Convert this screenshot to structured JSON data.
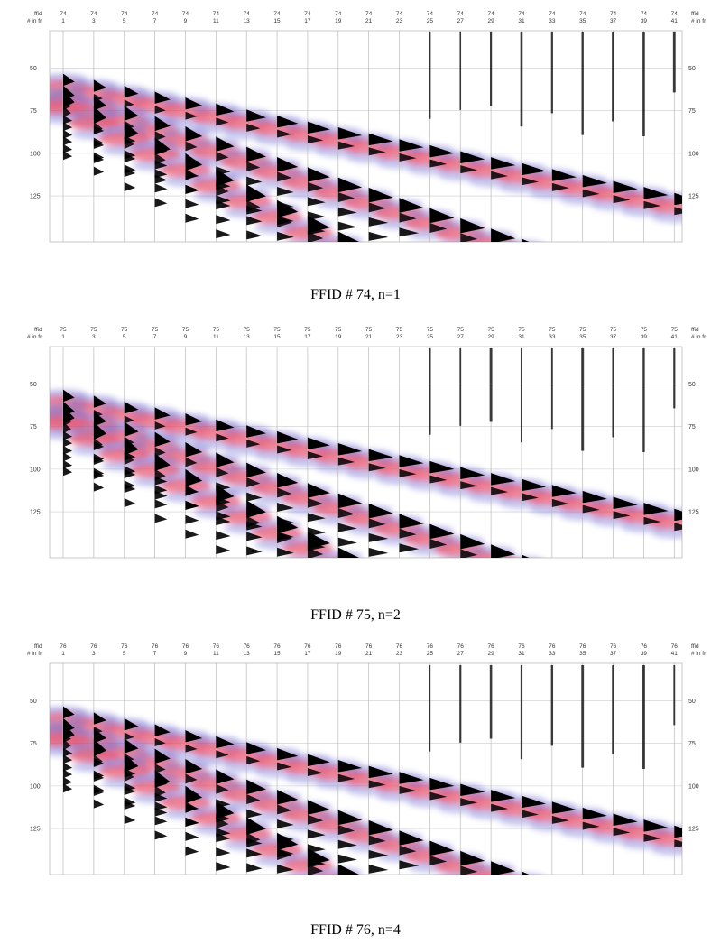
{
  "chart_data": [
    {
      "type": "seismic-wiggle",
      "caption": "FFID # 74, n=1",
      "header_labels": [
        "ffid",
        "# in fr"
      ],
      "ffid": 74,
      "traces": [
        1,
        3,
        5,
        7,
        9,
        11,
        13,
        15,
        17,
        19,
        21,
        23,
        25,
        27,
        29,
        31,
        33,
        35,
        37,
        39,
        41
      ],
      "y_ticks": [
        50,
        75,
        100,
        125
      ],
      "ylim": [
        28,
        152
      ],
      "events": [
        {
          "name": "",
          "t0": 58,
          "slope": 1.75
        },
        {
          "name": "",
          "t0": 66,
          "slope": 3.0
        },
        {
          "name": "",
          "t0": 70,
          "slope": 4.6
        }
      ]
    },
    {
      "type": "seismic-wiggle",
      "caption": "FFID # 75, n=2",
      "header_labels": [
        "ffid",
        "# in fr"
      ],
      "ffid": 75,
      "traces": [
        1,
        3,
        5,
        7,
        9,
        11,
        13,
        15,
        17,
        19,
        21,
        23,
        25,
        27,
        29,
        31,
        33,
        35,
        37,
        39,
        41
      ],
      "y_ticks": [
        50,
        75,
        100,
        125
      ],
      "ylim": [
        28,
        152
      ],
      "events": [
        {
          "name": "",
          "t0": 58,
          "slope": 1.75
        },
        {
          "name": "",
          "t0": 66,
          "slope": 3.0
        },
        {
          "name": "",
          "t0": 70,
          "slope": 4.6
        }
      ]
    },
    {
      "type": "seismic-wiggle",
      "caption": "FFID # 76, n=4",
      "header_labels": [
        "ffid",
        "# in fr"
      ],
      "ffid": 76,
      "traces": [
        1,
        3,
        5,
        7,
        9,
        11,
        13,
        15,
        17,
        19,
        21,
        23,
        25,
        27,
        29,
        31,
        33,
        35,
        37,
        39,
        41
      ],
      "y_ticks": [
        50,
        75,
        100,
        125
      ],
      "ylim": [
        28,
        152
      ],
      "events": [
        {
          "name": "",
          "t0": 58,
          "slope": 1.75
        },
        {
          "name": "",
          "t0": 66,
          "slope": 3.0
        },
        {
          "name": "",
          "t0": 70,
          "slope": 4.6
        }
      ]
    }
  ],
  "colors": {
    "positive": "#e8405a",
    "negative": "#6a6ad0",
    "wiggle_fill": "#000000",
    "trace_line": "#bbbbbb",
    "grid": "#cccccc"
  }
}
